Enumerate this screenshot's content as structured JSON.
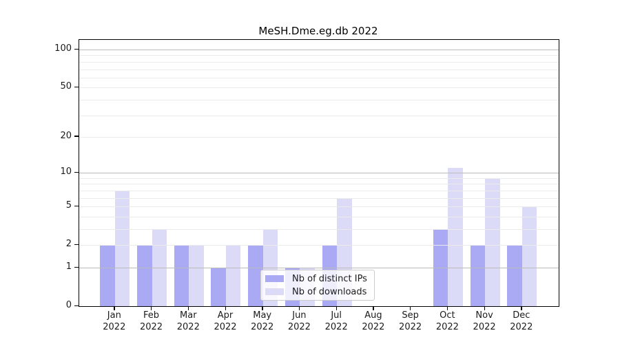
{
  "chart_data": {
    "type": "bar",
    "title": "MeSH.Dme.eg.db 2022",
    "categories": [
      "Jan 2022",
      "Feb 2022",
      "Mar 2022",
      "Apr 2022",
      "May 2022",
      "Jun 2022",
      "Jul 2022",
      "Aug 2022",
      "Sep 2022",
      "Oct 2022",
      "Nov 2022",
      "Dec 2022"
    ],
    "series": [
      {
        "name": "Nb of distinct IPs",
        "color": "#a9a9f4",
        "values": [
          2,
          2,
          2,
          1,
          2,
          1,
          2,
          0,
          0,
          3,
          2,
          2
        ]
      },
      {
        "name": "Nb of downloads",
        "color": "#dbdbf8",
        "values": [
          7,
          3,
          2,
          2,
          3,
          1,
          6,
          0,
          0,
          11,
          9,
          5
        ]
      }
    ],
    "xlabel": "",
    "ylabel": "",
    "y_scale": "log1p",
    "y_tick_labels": [
      0,
      1,
      2,
      5,
      10,
      20,
      50,
      100
    ],
    "y_major_gridlines": [
      1,
      10,
      100
    ],
    "y_minor_gridlines": [
      2,
      3,
      4,
      5,
      6,
      7,
      8,
      9,
      20,
      30,
      40,
      50,
      60,
      70,
      80,
      90
    ],
    "ylim": [
      0,
      120
    ],
    "grid": "on",
    "legend_position": "inside lower center",
    "colors": {
      "major_grid": "#bbbbbb",
      "minor_grid": "#ebebeb",
      "axis": "#000000",
      "background": "#ffffff"
    }
  }
}
